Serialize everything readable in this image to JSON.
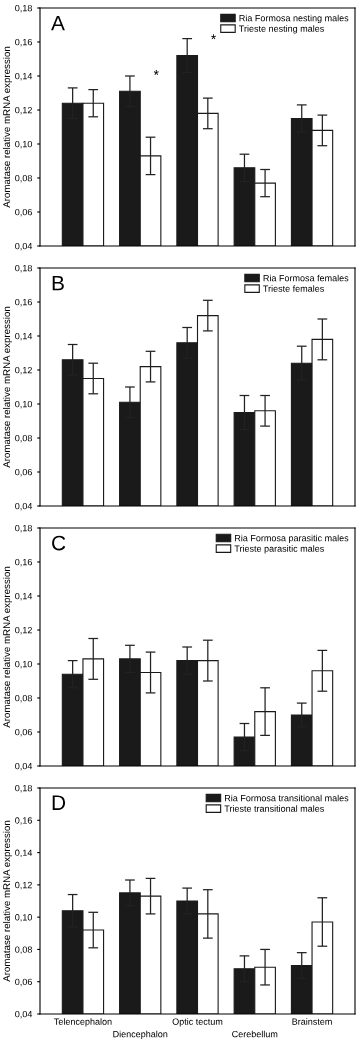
{
  "chart_data": [
    {
      "type": "bar",
      "title": "A",
      "ylabel": "Aromatase relative mRNA expression",
      "categories": [
        "Telencephalon",
        "Diencephalon",
        "Optic tectum",
        "Cerebellum",
        "Brainstem"
      ],
      "tick_labels": "y",
      "ylim": [
        0.04,
        0.18
      ],
      "yticks": [
        {
          "value": 0.04,
          "label": "0,04"
        },
        {
          "value": 0.06,
          "label": "0,06"
        },
        {
          "value": 0.08,
          "label": "0,08"
        },
        {
          "value": 0.1,
          "label": "0,10"
        },
        {
          "value": 0.12,
          "label": "0,12"
        },
        {
          "value": 0.14,
          "label": "0,14"
        },
        {
          "value": 0.16,
          "label": "0,16"
        },
        {
          "value": 0.18,
          "label": "0,18"
        }
      ],
      "legend": "top right",
      "grid": false,
      "series": [
        {
          "name": "Ria Formosa nesting males",
          "color": "#1a1a1a",
          "values": [
            0.124,
            0.131,
            0.152,
            0.086,
            0.115
          ],
          "errors": [
            0.009,
            0.009,
            0.01,
            0.008,
            0.008
          ]
        },
        {
          "name": "Trieste nesting males",
          "color": "#ffffff",
          "values": [
            0.124,
            0.093,
            0.118,
            0.077,
            0.108
          ],
          "errors": [
            0.008,
            0.011,
            0.009,
            0.008,
            0.009
          ]
        }
      ],
      "annotations": [
        {
          "text": "*",
          "x": "Diencephalon",
          "y": 0.131
        },
        {
          "text": "*",
          "x": "Optic tectum",
          "y": 0.152
        }
      ]
    },
    {
      "type": "bar",
      "title": "B",
      "ylabel": "Aromatase relative mRNA expression",
      "categories": [
        "Telencephalon",
        "Diencephalon",
        "Optic tectum",
        "Cerebellum",
        "Brainstem"
      ],
      "tick_labels": "y",
      "ylim": [
        0.04,
        0.18
      ],
      "yticks": [
        {
          "value": 0.04,
          "label": "0,04"
        },
        {
          "value": 0.06,
          "label": "0,06"
        },
        {
          "value": 0.08,
          "label": "0,08"
        },
        {
          "value": 0.1,
          "label": "0,10"
        },
        {
          "value": 0.12,
          "label": "0,12"
        },
        {
          "value": 0.14,
          "label": "0,14"
        },
        {
          "value": 0.16,
          "label": "0,16"
        },
        {
          "value": 0.18,
          "label": "0,18"
        }
      ],
      "legend": "top right",
      "grid": false,
      "series": [
        {
          "name": "Ria Formosa females",
          "color": "#1a1a1a",
          "values": [
            0.126,
            0.101,
            0.136,
            0.095,
            0.124
          ],
          "errors": [
            0.009,
            0.009,
            0.009,
            0.01,
            0.01
          ]
        },
        {
          "name": "Trieste females",
          "color": "#ffffff",
          "values": [
            0.115,
            0.122,
            0.152,
            0.096,
            0.138
          ],
          "errors": [
            0.009,
            0.009,
            0.009,
            0.009,
            0.012
          ]
        }
      ]
    },
    {
      "type": "bar",
      "title": "C",
      "ylabel": "Aromatase relative mRNA expression",
      "categories": [
        "Telencephalon",
        "Diencephalon",
        "Optic tectum",
        "Cerebellum",
        "Brainstem"
      ],
      "tick_labels": "y",
      "ylim": [
        0.04,
        0.18
      ],
      "yticks": [
        {
          "value": 0.04,
          "label": "0,04"
        },
        {
          "value": 0.06,
          "label": "0,06"
        },
        {
          "value": 0.08,
          "label": "0,08"
        },
        {
          "value": 0.1,
          "label": "0,10"
        },
        {
          "value": 0.12,
          "label": "0,12"
        },
        {
          "value": 0.14,
          "label": "0,14"
        },
        {
          "value": 0.16,
          "label": "0,16"
        },
        {
          "value": 0.18,
          "label": "0,18"
        }
      ],
      "legend": "top right",
      "grid": false,
      "series": [
        {
          "name": "Ria Formosa parasitic males",
          "color": "#1a1a1a",
          "values": [
            0.094,
            0.103,
            0.102,
            0.057,
            0.07
          ],
          "errors": [
            0.008,
            0.008,
            0.008,
            0.008,
            0.007
          ]
        },
        {
          "name": "Trieste parasitic males",
          "color": "#ffffff",
          "values": [
            0.103,
            0.095,
            0.102,
            0.072,
            0.096
          ],
          "errors": [
            0.012,
            0.012,
            0.012,
            0.014,
            0.012
          ]
        }
      ]
    },
    {
      "type": "bar",
      "title": "D",
      "ylabel": "Aromatase relative mRNA expression",
      "categories": [
        "Telencephalon",
        "Diencephalon",
        "Optic tectum",
        "Cerebellum",
        "Brainstem"
      ],
      "ylim": [
        0.04,
        0.18
      ],
      "yticks": [
        {
          "value": 0.04,
          "label": "0,04"
        },
        {
          "value": 0.06,
          "label": "0,06"
        },
        {
          "value": 0.08,
          "label": "0,08"
        },
        {
          "value": 0.1,
          "label": "0,10"
        },
        {
          "value": 0.12,
          "label": "0,12"
        },
        {
          "value": 0.14,
          "label": "0,14"
        },
        {
          "value": 0.16,
          "label": "0,16"
        },
        {
          "value": 0.18,
          "label": "0,18"
        }
      ],
      "legend": "top right",
      "grid": false,
      "series": [
        {
          "name": "Ria Formosa transitional males",
          "color": "#1a1a1a",
          "values": [
            0.104,
            0.115,
            0.11,
            0.068,
            0.07
          ],
          "errors": [
            0.01,
            0.008,
            0.008,
            0.008,
            0.008
          ]
        },
        {
          "name": "Trieste transitional males",
          "color": "#ffffff",
          "values": [
            0.092,
            0.113,
            0.102,
            0.069,
            0.097
          ],
          "errors": [
            0.011,
            0.011,
            0.015,
            0.011,
            0.015
          ]
        }
      ]
    }
  ]
}
